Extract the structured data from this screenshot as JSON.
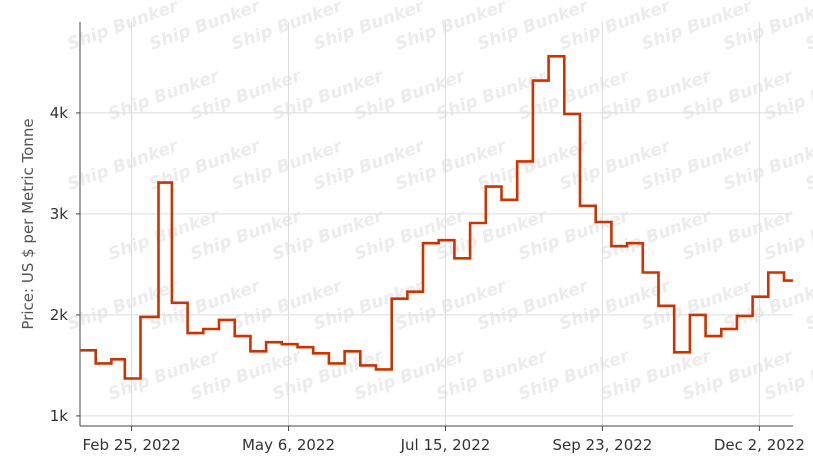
{
  "chart_data": {
    "type": "line",
    "ylabel": "Price: US $ per Metric Tonne",
    "xlabel": "",
    "watermark": "Ship Bunker",
    "line_color": "#cc3300",
    "grid": true,
    "ylim": [
      900,
      4900
    ],
    "yticks": [
      {
        "value": 1000,
        "label": "1k"
      },
      {
        "value": 2000,
        "label": "2k"
      },
      {
        "value": 3000,
        "label": "3k"
      },
      {
        "value": 4000,
        "label": "4k"
      }
    ],
    "xticks": [
      {
        "date": "2022-02-25",
        "label": "Feb 25, 2022"
      },
      {
        "date": "2022-05-06",
        "label": "May 6, 2022"
      },
      {
        "date": "2022-07-15",
        "label": "Jul 15, 2022"
      },
      {
        "date": "2022-09-23",
        "label": "Sep 23, 2022"
      },
      {
        "date": "2022-12-02",
        "label": "Dec 2, 2022"
      }
    ],
    "xlim": [
      "2022-02-02",
      "2022-12-17"
    ],
    "step": true,
    "series": [
      {
        "values": [
          {
            "x": "2022-02-02",
            "y": 1650
          },
          {
            "x": "2022-02-09",
            "y": 1520
          },
          {
            "x": "2022-02-16",
            "y": 1560
          },
          {
            "x": "2022-02-22",
            "y": 1370
          },
          {
            "x": "2022-03-01",
            "y": 1980
          },
          {
            "x": "2022-03-09",
            "y": 3310
          },
          {
            "x": "2022-03-15",
            "y": 2120
          },
          {
            "x": "2022-03-22",
            "y": 1820
          },
          {
            "x": "2022-03-29",
            "y": 1860
          },
          {
            "x": "2022-04-05",
            "y": 1950
          },
          {
            "x": "2022-04-12",
            "y": 1790
          },
          {
            "x": "2022-04-19",
            "y": 1640
          },
          {
            "x": "2022-04-26",
            "y": 1730
          },
          {
            "x": "2022-05-03",
            "y": 1710
          },
          {
            "x": "2022-05-10",
            "y": 1680
          },
          {
            "x": "2022-05-17",
            "y": 1620
          },
          {
            "x": "2022-05-24",
            "y": 1520
          },
          {
            "x": "2022-05-31",
            "y": 1640
          },
          {
            "x": "2022-06-07",
            "y": 1500
          },
          {
            "x": "2022-06-14",
            "y": 1460
          },
          {
            "x": "2022-06-21",
            "y": 2160
          },
          {
            "x": "2022-06-28",
            "y": 2230
          },
          {
            "x": "2022-07-05",
            "y": 2710
          },
          {
            "x": "2022-07-12",
            "y": 2740
          },
          {
            "x": "2022-07-19",
            "y": 2560
          },
          {
            "x": "2022-07-26",
            "y": 2910
          },
          {
            "x": "2022-08-02",
            "y": 3270
          },
          {
            "x": "2022-08-09",
            "y": 3140
          },
          {
            "x": "2022-08-16",
            "y": 3520
          },
          {
            "x": "2022-08-23",
            "y": 4320
          },
          {
            "x": "2022-08-30",
            "y": 4560
          },
          {
            "x": "2022-09-06",
            "y": 3990
          },
          {
            "x": "2022-09-13",
            "y": 3080
          },
          {
            "x": "2022-09-20",
            "y": 2920
          },
          {
            "x": "2022-09-27",
            "y": 2680
          },
          {
            "x": "2022-10-04",
            "y": 2710
          },
          {
            "x": "2022-10-11",
            "y": 2420
          },
          {
            "x": "2022-10-18",
            "y": 2090
          },
          {
            "x": "2022-10-25",
            "y": 1630
          },
          {
            "x": "2022-11-01",
            "y": 2000
          },
          {
            "x": "2022-11-08",
            "y": 1790
          },
          {
            "x": "2022-11-15",
            "y": 1860
          },
          {
            "x": "2022-11-22",
            "y": 1990
          },
          {
            "x": "2022-11-29",
            "y": 2180
          },
          {
            "x": "2022-12-06",
            "y": 2420
          },
          {
            "x": "2022-12-13",
            "y": 2340
          }
        ]
      }
    ]
  }
}
